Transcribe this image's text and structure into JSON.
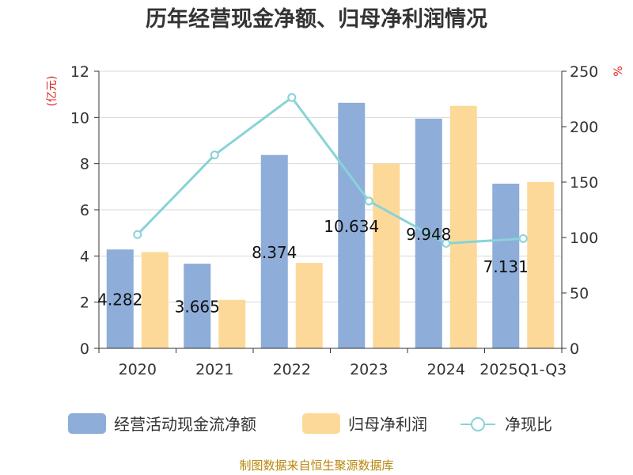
{
  "chart_data": {
    "type": "bar",
    "title": "历年经营现金净额、归母净利润情况",
    "categories": [
      "2020",
      "2021",
      "2022",
      "2023",
      "2024",
      "2025Q1-Q3"
    ],
    "series": [
      {
        "name": "经营活动现金流净额",
        "type": "bar",
        "axis": "left",
        "color": "#8eadd9",
        "values": [
          4.282,
          3.665,
          8.374,
          10.634,
          9.948,
          7.131
        ]
      },
      {
        "name": "归母净利润",
        "type": "bar",
        "axis": "left",
        "color": "#fdd999",
        "values": [
          4.17,
          2.1,
          3.7,
          8.0,
          10.5,
          7.2
        ]
      },
      {
        "name": "净现比",
        "type": "line",
        "axis": "right",
        "color": "#88d3d8",
        "values": [
          102.7,
          174.5,
          226.3,
          132.9,
          94.7,
          99.0
        ]
      }
    ],
    "data_labels": [
      "4.282",
      "3.665",
      "8.374",
      "10.634",
      "9.948",
      "7.131"
    ],
    "y_left": {
      "label": "(亿元)",
      "ticks": [
        "0",
        "2",
        "4",
        "6",
        "8",
        "10",
        "12"
      ],
      "range": [
        0,
        12
      ]
    },
    "y_right": {
      "label": "%",
      "ticks": [
        "0",
        "50",
        "100",
        "150",
        "200",
        "250"
      ],
      "range": [
        0,
        250
      ]
    },
    "grid": true,
    "legend_position": "bottom"
  },
  "footer": {
    "source": "制图数据来自恒生聚源数据库"
  },
  "colors": {
    "left_unit": "#e02020",
    "right_unit": "#e02020",
    "axis": "#333333",
    "grid": "#d9d9d9"
  }
}
